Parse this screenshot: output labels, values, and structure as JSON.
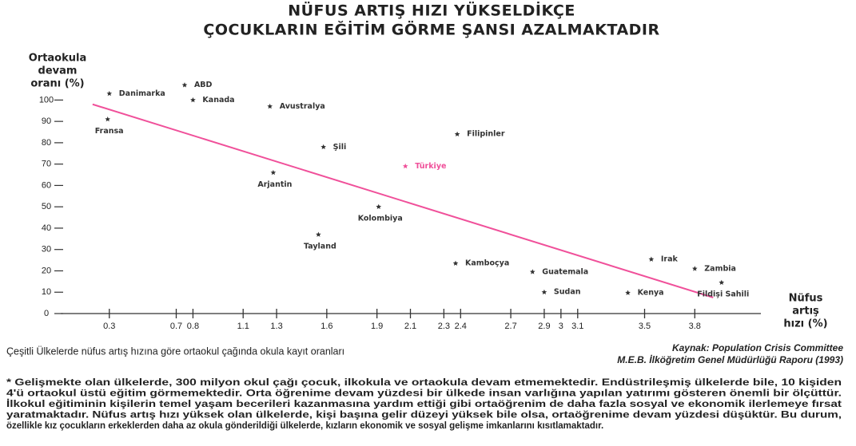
{
  "chart_data": {
    "type": "scatter",
    "title": [
      "NÜFUS ARTIŞ HIZI YÜKSELDİKÇE",
      "ÇOCUKLARIN EĞİTİM GÖRME ŞANSI AZALMAKTADIR"
    ],
    "y_label": [
      "Ortaokula",
      "devam",
      "oranı (%)"
    ],
    "x_label": [
      "Nüfus",
      "artış",
      "hızı (%)"
    ],
    "labels": [
      "Danimarka",
      "ABD",
      "Kanada",
      "Avustralya",
      "Fransa",
      "Şili",
      "Filipinler",
      "Türkiye",
      "Arjantin",
      "Kolombiya",
      "Tayland",
      "Kamboçya",
      "Guatemala",
      "Sudan",
      "Kenya",
      "Irak",
      "Zambia",
      "Fildişi Sahili"
    ],
    "x": [
      0.3,
      0.75,
      0.8,
      1.26,
      0.29,
      1.58,
      2.38,
      2.07,
      1.28,
      1.91,
      1.55,
      2.37,
      2.83,
      2.9,
      3.4,
      3.54,
      3.8,
      3.96
    ],
    "values": [
      103,
      107,
      100,
      97,
      91,
      78,
      84,
      69,
      66,
      50,
      37,
      23.5,
      19.5,
      10,
      9.7,
      25.4,
      21,
      14.5
    ],
    "colors": [
      "#333",
      "#333",
      "#333",
      "#333",
      "#333",
      "#333",
      "#333",
      "#f0509a",
      "#333",
      "#333",
      "#333",
      "#333",
      "#333",
      "#333",
      "#333",
      "#333",
      "#333",
      "#333"
    ],
    "trendline": {
      "x": [
        0.2,
        3.91
      ],
      "values": [
        98,
        7.5
      ],
      "color": "#f0509a"
    },
    "xlim": [
      0,
      4.2
    ],
    "ylim": [
      0,
      105
    ],
    "xticks": [
      0.3,
      0.7,
      0.8,
      1.1,
      1.3,
      1.6,
      1.9,
      2.1,
      2.3,
      2.4,
      2.7,
      2.9,
      3,
      3.1,
      3.5,
      3.8
    ],
    "yticks": [
      0,
      10,
      20,
      30,
      40,
      50,
      60,
      70,
      80,
      90,
      100
    ],
    "caption": "Çeşitli Ülkelerde nüfus artış hızına göre ortaokul çağında okula kayıt oranları",
    "source": [
      "Kaynak: Population Crisis Committee",
      "M.E.B. İlköğretim Genel Müdürlüğü Raporu (1993)"
    ],
    "footnote": [
      "* Gelişmekte olan ülkelerde, 300 milyon okul çağı çocuk, ilkokula ve ortaokula devam etmemektedir. Endüstrileşmiş ülkelerde bile, 10 kişiden",
      "4'ü ortaokul üstü eğitim görmemektedir. Orta öğrenime devam yüzdesi bir ülkede insan varlığına yapılan yatırımı gösteren önemli bir ölçüttür.",
      "İlkokul eğitiminin kişilerin temel yaşam becerileri kazanmasına yardım ettiği gibi ortaöğrenim de daha fazla sosyal ve ekonomik ilerlemeye fırsat",
      "yaratmaktadır. Nüfus artış hızı yüksek olan ülkelerde, kişi başına gelir düzeyi yüksek bile olsa, ortaöğrenime devam yüzdesi düşüktür. Bu durum,",
      "özellikle kız çocukların erkeklerden daha az okula gönderildiği ülkelerde, kızların ekonomik ve sosyal gelişme imkanlarını kısıtlamaktadır."
    ]
  }
}
